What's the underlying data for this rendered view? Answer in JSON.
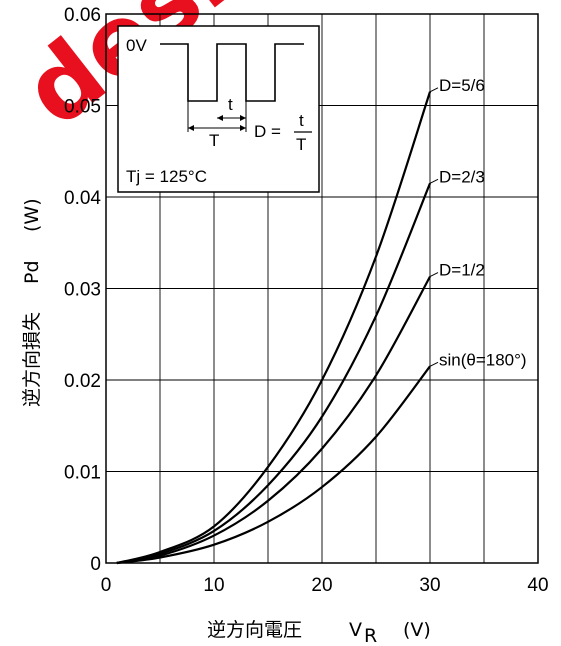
{
  "watermark": "design",
  "chart_data": {
    "type": "line",
    "x_ticks": [
      "0",
      "10",
      "20",
      "30",
      "40"
    ],
    "y_ticks": [
      "0",
      "0.01",
      "0.02",
      "0.03",
      "0.04",
      "0.05",
      "0.06"
    ],
    "xlim": [
      0,
      40
    ],
    "ylim": [
      0,
      0.06
    ],
    "grid": true,
    "xlabel": {
      "main": "逆方向電圧",
      "symbol": "V",
      "sub": "R",
      "unit": "(V)"
    },
    "ylabel": {
      "main": "逆方向損失",
      "symbol": "Pd",
      "unit": "(W)"
    },
    "series": [
      {
        "name": "D=5/6",
        "x": [
          1,
          5,
          10,
          15,
          20,
          25,
          30
        ],
        "y": [
          0,
          0.0012,
          0.004,
          0.0105,
          0.02,
          0.0335,
          0.0515
        ]
      },
      {
        "name": "D=2/3",
        "x": [
          1,
          5,
          10,
          15,
          20,
          25,
          30
        ],
        "y": [
          0,
          0.001,
          0.0035,
          0.0085,
          0.016,
          0.027,
          0.0415
        ]
      },
      {
        "name": "D=1/2",
        "x": [
          1,
          5,
          10,
          15,
          20,
          25,
          30
        ],
        "y": [
          0,
          0.0008,
          0.003,
          0.0068,
          0.0125,
          0.0205,
          0.0313
        ]
      },
      {
        "name": "sin(θ=180°)",
        "x": [
          1,
          5,
          10,
          15,
          20,
          25,
          30
        ],
        "y": [
          0,
          0.0006,
          0.002,
          0.0045,
          0.0083,
          0.0138,
          0.0215
        ]
      }
    ],
    "inset": {
      "level_label": "0V",
      "t_label": "t",
      "T_label": "T",
      "duty_label": "D =",
      "frac_num": "t",
      "frac_den": "T",
      "condition": "Tj = 125°C"
    }
  }
}
